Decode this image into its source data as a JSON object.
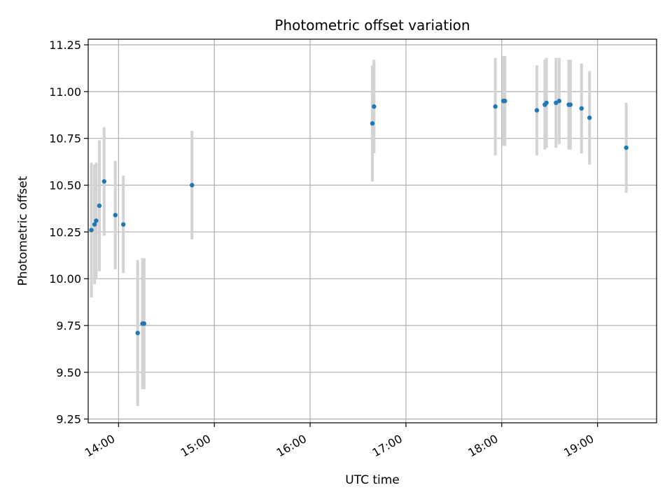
{
  "chart_data": {
    "type": "scatter",
    "title": "Photometric offset variation",
    "xlabel": "UTC time",
    "ylabel": "Photometric offset",
    "x_ticks": [
      "14:00",
      "15:00",
      "16:00",
      "17:00",
      "18:00",
      "19:00"
    ],
    "y_ticks": [
      "9.25",
      "9.50",
      "9.75",
      "10.00",
      "10.25",
      "10.50",
      "10.75",
      "11.00",
      "11.25"
    ],
    "xlim": [
      "13:41",
      "19:37"
    ],
    "ylim": [
      9.23,
      11.28
    ],
    "grid": true,
    "colors": {
      "points": "#1f77b4",
      "errorbars": "#d3d3d3",
      "grid": "#b0b0b0"
    },
    "series": [
      {
        "points": [
          {
            "x": "13:43",
            "y": 10.26,
            "err": 0.36
          },
          {
            "x": "13:45",
            "y": 10.29,
            "err": 0.32
          },
          {
            "x": "13:46",
            "y": 10.31,
            "err": 0.31
          },
          {
            "x": "13:48",
            "y": 10.39,
            "err": 0.35
          },
          {
            "x": "13:51",
            "y": 10.52,
            "err": 0.29
          },
          {
            "x": "13:58",
            "y": 10.34,
            "err": 0.29
          },
          {
            "x": "14:03",
            "y": 10.29,
            "err": 0.26
          },
          {
            "x": "14:12",
            "y": 9.71,
            "err": 0.39
          },
          {
            "x": "14:15",
            "y": 9.76,
            "err": 0.35
          },
          {
            "x": "14:16",
            "y": 9.76,
            "err": 0.35
          },
          {
            "x": "14:46",
            "y": 10.5,
            "err": 0.29
          },
          {
            "x": "16:39",
            "y": 10.83,
            "err": 0.31
          },
          {
            "x": "16:40",
            "y": 10.92,
            "err": 0.25
          },
          {
            "x": "17:56",
            "y": 10.92,
            "err": 0.26
          },
          {
            "x": "18:01",
            "y": 10.95,
            "err": 0.24
          },
          {
            "x": "18:02",
            "y": 10.95,
            "err": 0.24
          },
          {
            "x": "18:22",
            "y": 10.9,
            "err": 0.24
          },
          {
            "x": "18:27",
            "y": 10.93,
            "err": 0.24
          },
          {
            "x": "18:28",
            "y": 10.94,
            "err": 0.24
          },
          {
            "x": "18:34",
            "y": 10.94,
            "err": 0.24
          },
          {
            "x": "18:36",
            "y": 10.95,
            "err": 0.23
          },
          {
            "x": "18:42",
            "y": 10.93,
            "err": 0.24
          },
          {
            "x": "18:43",
            "y": 10.93,
            "err": 0.24
          },
          {
            "x": "18:50",
            "y": 10.91,
            "err": 0.24
          },
          {
            "x": "18:55",
            "y": 10.86,
            "err": 0.25
          },
          {
            "x": "19:18",
            "y": 10.7,
            "err": 0.24
          }
        ]
      }
    ]
  }
}
